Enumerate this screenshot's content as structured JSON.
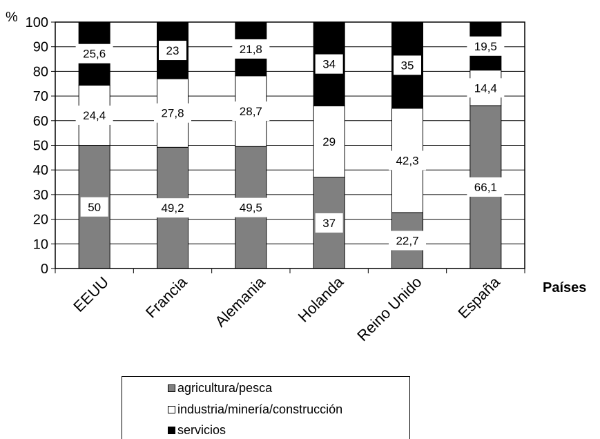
{
  "chart_data": {
    "type": "bar",
    "stacked": true,
    "xlabel": "Países",
    "ylabel": "%",
    "ylim": [
      0,
      100
    ],
    "yticks": [
      0,
      10,
      20,
      30,
      40,
      50,
      60,
      70,
      80,
      90,
      100
    ],
    "categories": [
      "EEUU",
      "Francia",
      "Alemania",
      "Holanda",
      "Reino Unido",
      "España"
    ],
    "series": [
      {
        "name": "agricultura/pesca",
        "values": [
          50,
          49.2,
          49.5,
          37,
          22.7,
          66.1
        ],
        "labels": [
          "50",
          "49,2",
          "49,5",
          "37",
          "22,7",
          "66,1"
        ],
        "color": "#808080"
      },
      {
        "name": "industria/minería/construcción",
        "values": [
          24.4,
          27.8,
          28.7,
          29,
          42.3,
          14.4
        ],
        "labels": [
          "24,4",
          "27,8",
          "28,7",
          "29",
          "42,3",
          "14,4"
        ],
        "color": "#ffffff"
      },
      {
        "name": "servicios",
        "values": [
          25.6,
          23,
          21.8,
          34,
          35,
          19.5
        ],
        "labels": [
          "25,6",
          "23",
          "21,8",
          "34",
          "35",
          "19,5"
        ],
        "color": "#000000"
      }
    ],
    "grid": "horizontal",
    "legend": "bottom"
  }
}
